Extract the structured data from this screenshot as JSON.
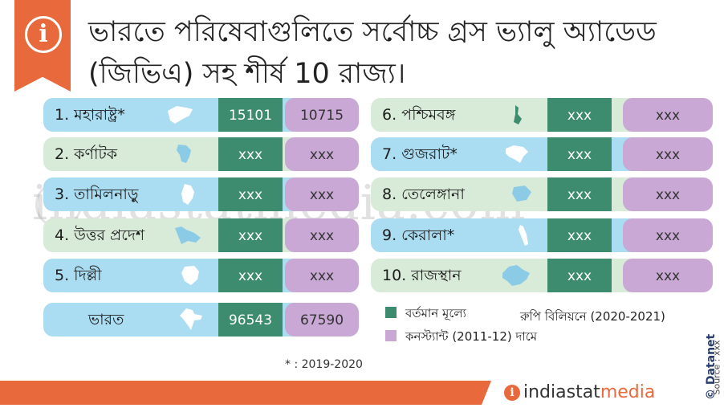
{
  "title": "ভারতে পরিষেবাগুলিতে সর্বোচ্চ গ্রস ভ্যালু অ্যাডেড (জিভিএ) সহ শীর্ষ 10 রাজ্য।",
  "info_glyph": "i",
  "left_rows": [
    {
      "label": "1. মহারাষ্ট্র*",
      "current": "15101",
      "constant": "10715"
    },
    {
      "label": "2. কর্ণাটক",
      "current": "xxx",
      "constant": "xxx"
    },
    {
      "label": "3. তামিলনাড়ু",
      "current": "xxx",
      "constant": "xxx"
    },
    {
      "label": "4. উত্তর প্রদেশ",
      "current": "xxx",
      "constant": "xxx"
    },
    {
      "label": "5. দিল্লী",
      "current": "xxx",
      "constant": "xxx"
    }
  ],
  "right_rows": [
    {
      "label": "6. পশ্চিমবঙ্গ",
      "current": "xxx",
      "constant": "xxx"
    },
    {
      "label": "7. গুজরাট*",
      "current": "xxx",
      "constant": "xxx"
    },
    {
      "label": "8. তেলেঙ্গানা",
      "current": "xxx",
      "constant": "xxx"
    },
    {
      "label": "9. কেরালা*",
      "current": "xxx",
      "constant": "xxx"
    },
    {
      "label": "10. রাজস্থান",
      "current": "xxx",
      "constant": "xxx"
    }
  ],
  "india_row": {
    "label": "ভারত",
    "current": "96543",
    "constant": "67590"
  },
  "legend": {
    "current_label": "বর্তমান মূল্যে",
    "constant_label": "কনস্ট্যান্ট (2011-12) দামে",
    "unit": "রুপি বিলিয়নে (2020-2021)"
  },
  "note": "* : 2019-2020",
  "source": "Source : xxx",
  "datanet": "© Datanet",
  "brand": {
    "part1": "indiastat",
    "part2": "media"
  },
  "watermark": "indiastatmedia.com",
  "colors": {
    "accent": "#e8693c",
    "current": "#3d8c70",
    "constant": "#c9a8d6",
    "row_blue": "#aadcf2",
    "row_green": "#d8ebd8"
  }
}
